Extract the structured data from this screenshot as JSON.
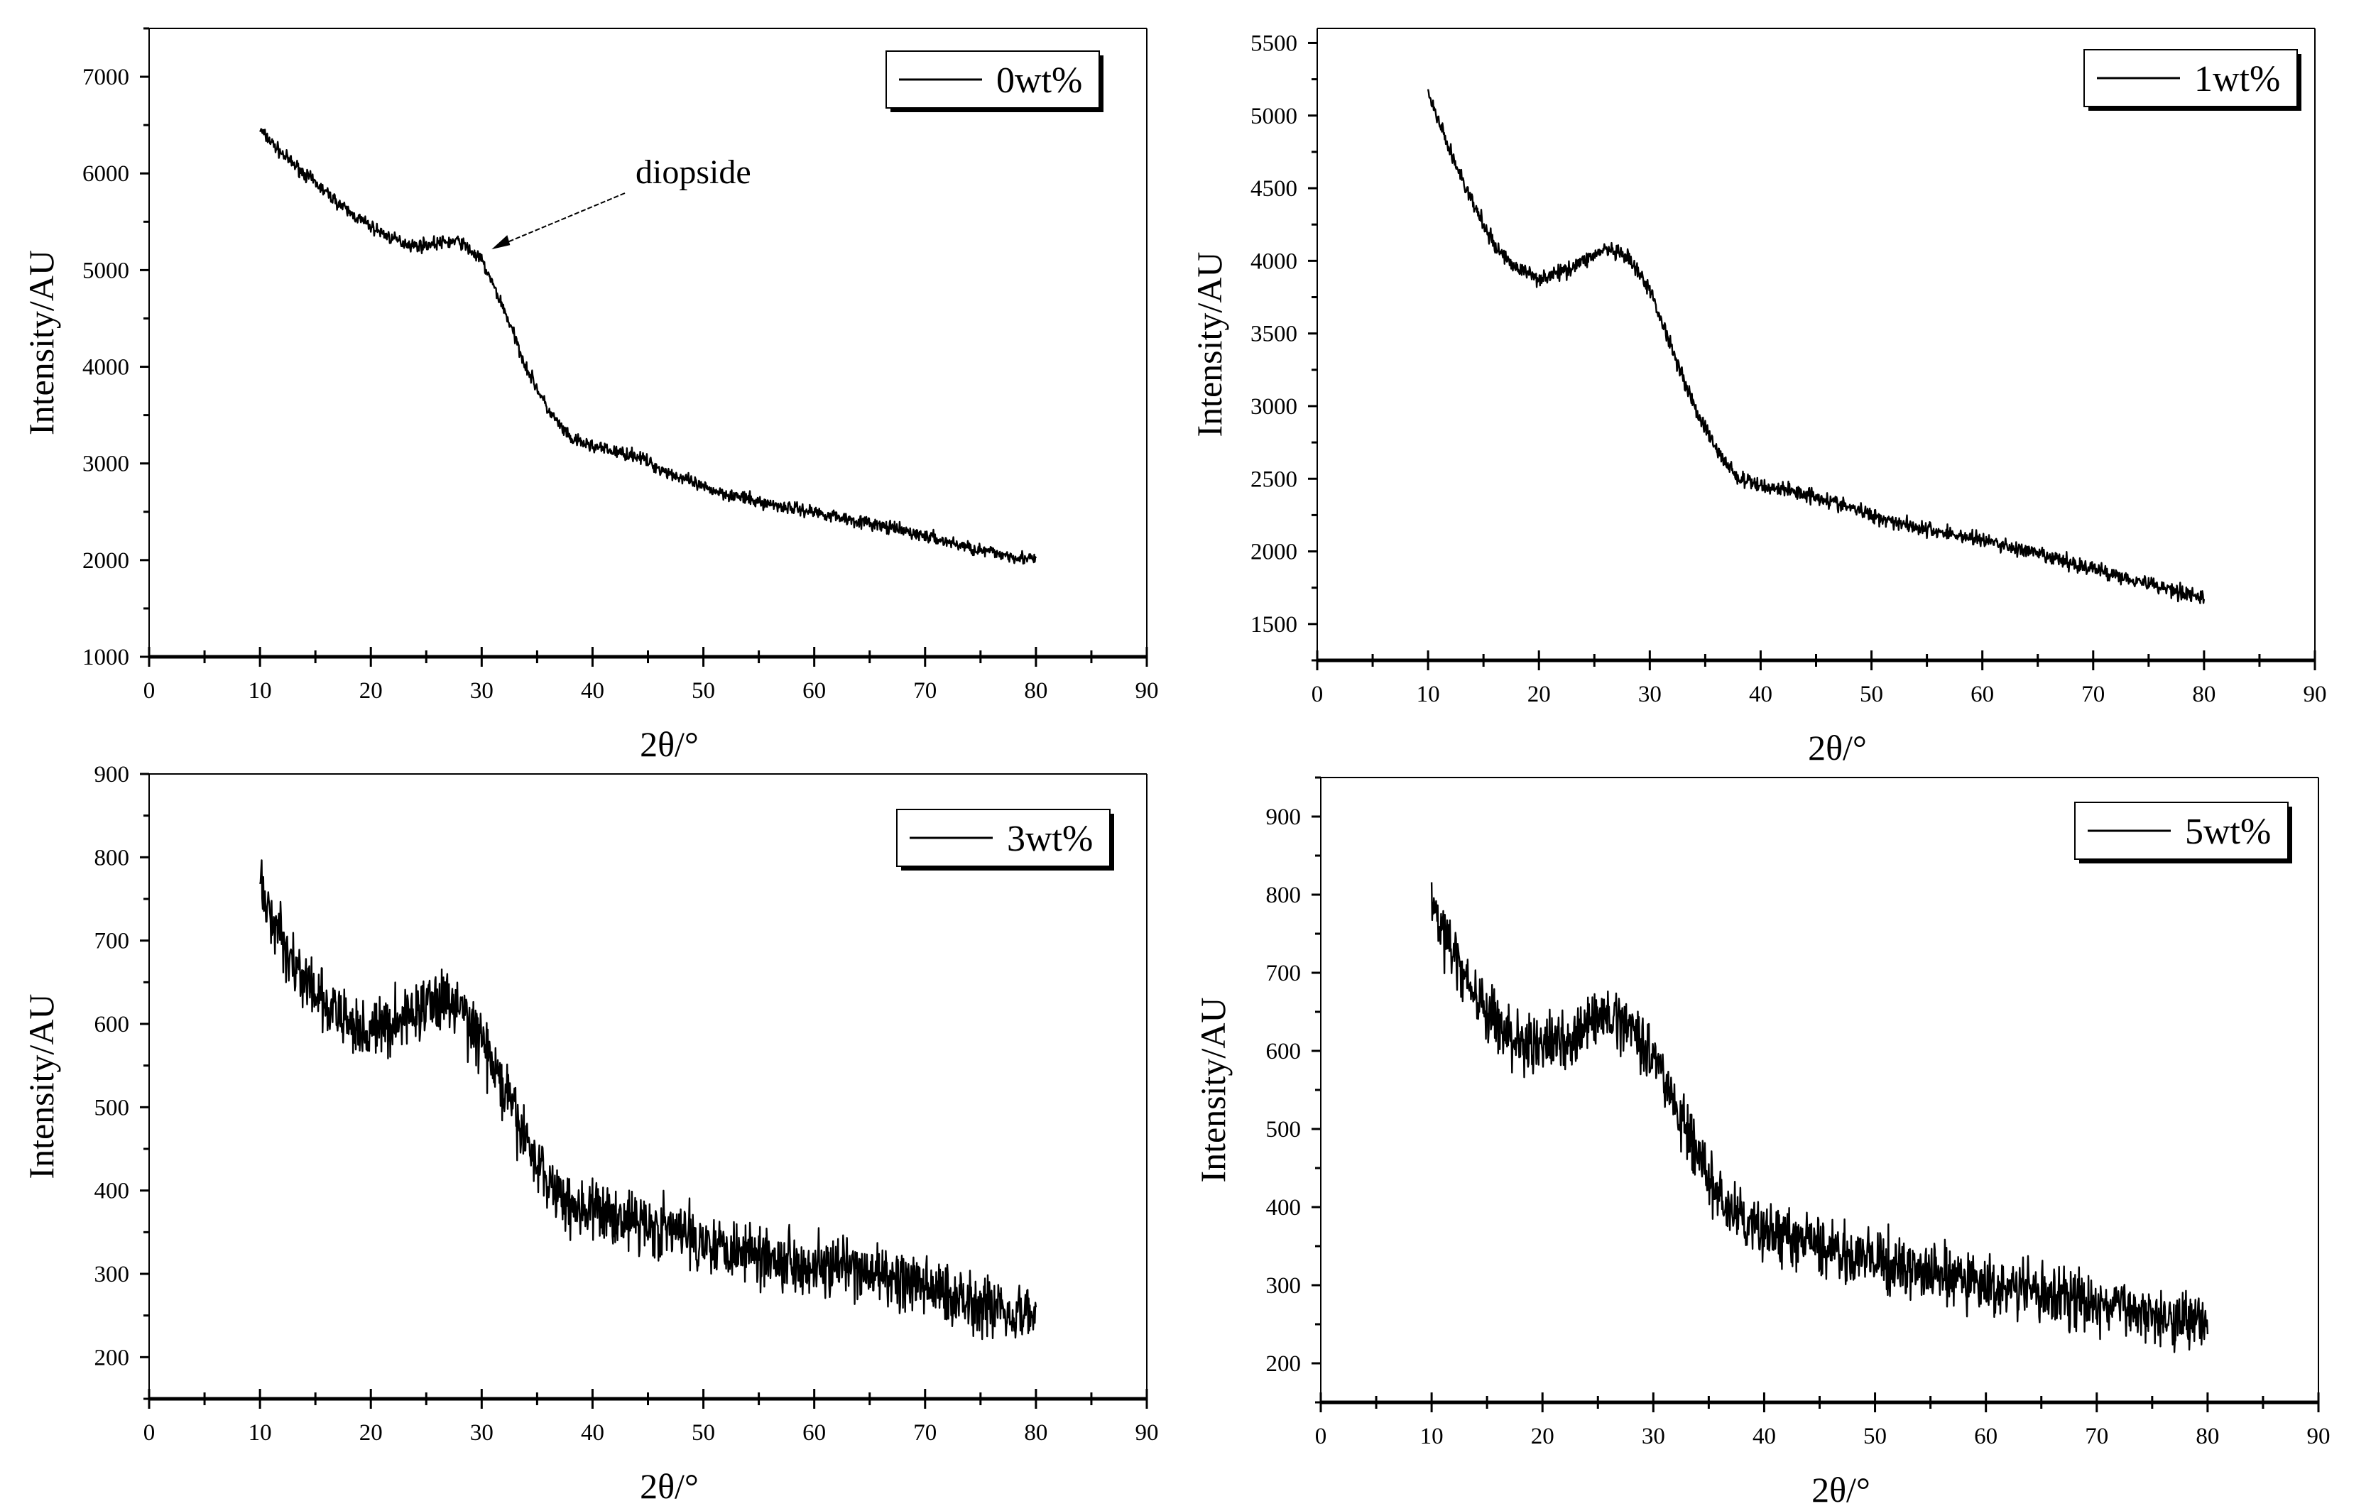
{
  "chart_data": [
    {
      "type": "line",
      "xlabel": "2θ/°",
      "ylabel": "Intensity/AU",
      "xlim": [
        0,
        90
      ],
      "ylim": [
        1000,
        7500
      ],
      "xticks": [
        0,
        10,
        20,
        30,
        40,
        50,
        60,
        70,
        80,
        90
      ],
      "xtick_labels": [
        "0",
        "10",
        "20",
        "30",
        "40",
        "50",
        "60",
        "70",
        "80",
        "90"
      ],
      "yticks": [
        1000,
        2000,
        3000,
        4000,
        5000,
        6000,
        7000
      ],
      "ytick_labels": [
        "1000",
        "2000",
        "3000",
        "4000",
        "5000",
        "6000",
        "7000"
      ],
      "legend": "0wt%",
      "legend_position": "top-right",
      "annotation": {
        "text": "diopside",
        "x": 30,
        "y": 5200
      },
      "noise": 100,
      "series": [
        {
          "name": "0wt%",
          "x": [
            10,
            12,
            14,
            16,
            18,
            20,
            22,
            24,
            26,
            28,
            30,
            32,
            34,
            36,
            38,
            40,
            42,
            44,
            46,
            50,
            55,
            60,
            65,
            70,
            75,
            80
          ],
          "y": [
            6450,
            6200,
            6000,
            5800,
            5600,
            5450,
            5320,
            5250,
            5280,
            5300,
            5100,
            4600,
            4000,
            3550,
            3250,
            3180,
            3120,
            3080,
            2950,
            2750,
            2600,
            2500,
            2380,
            2250,
            2100,
            2000
          ]
        }
      ]
    },
    {
      "type": "line",
      "xlabel": "2θ/°",
      "ylabel": "Intensity/AU",
      "xlim": [
        0,
        90
      ],
      "ylim": [
        1250,
        5600
      ],
      "xticks": [
        0,
        10,
        20,
        30,
        40,
        50,
        60,
        70,
        80,
        90
      ],
      "xtick_labels": [
        "0",
        "10",
        "20",
        "30",
        "40",
        "50",
        "60",
        "70",
        "80",
        "90"
      ],
      "yticks": [
        1500,
        2000,
        2500,
        3000,
        3500,
        4000,
        4500,
        5000,
        5500
      ],
      "ytick_labels": [
        "1500",
        "2000",
        "2500",
        "3000",
        "3500",
        "4000",
        "4500",
        "5000",
        "5500"
      ],
      "legend": "1wt%",
      "legend_position": "top-right",
      "noise": 80,
      "series": [
        {
          "name": "1wt%",
          "x": [
            10,
            12,
            14,
            16,
            18,
            20,
            22,
            24,
            26,
            28,
            30,
            32,
            34,
            36,
            38,
            40,
            42,
            45,
            50,
            55,
            60,
            65,
            70,
            75,
            80
          ],
          "y": [
            5150,
            4750,
            4400,
            4100,
            3950,
            3880,
            3920,
            4000,
            4080,
            4020,
            3800,
            3400,
            3000,
            2700,
            2500,
            2450,
            2430,
            2380,
            2250,
            2150,
            2080,
            1980,
            1880,
            1780,
            1680
          ]
        }
      ]
    },
    {
      "type": "line",
      "xlabel": "2θ/°",
      "ylabel": "Intensity/AU",
      "xlim": [
        0,
        90
      ],
      "ylim": [
        150,
        900
      ],
      "xticks": [
        0,
        10,
        20,
        30,
        40,
        50,
        60,
        70,
        80,
        90
      ],
      "xtick_labels": [
        "0",
        "10",
        "20",
        "30",
        "40",
        "50",
        "60",
        "70",
        "80",
        "90"
      ],
      "yticks": [
        200,
        300,
        400,
        500,
        600,
        700,
        800,
        900
      ],
      "ytick_labels": [
        "200",
        "300",
        "400",
        "500",
        "600",
        "700",
        "800",
        "900"
      ],
      "legend": "3wt%",
      "legend_position": "top-right",
      "noise": 55,
      "series": [
        {
          "name": "3wt%",
          "x": [
            10,
            12,
            14,
            16,
            18,
            20,
            22,
            24,
            26,
            28,
            30,
            32,
            34,
            36,
            38,
            40,
            42,
            45,
            50,
            55,
            60,
            65,
            70,
            75,
            80
          ],
          "y": [
            760,
            700,
            650,
            620,
            600,
            590,
            600,
            615,
            630,
            620,
            580,
            520,
            460,
            410,
            385,
            375,
            370,
            360,
            340,
            325,
            310,
            300,
            285,
            265,
            250
          ]
        }
      ]
    },
    {
      "type": "line",
      "xlabel": "2θ/°",
      "ylabel": "Intensity/AU",
      "xlim": [
        0,
        90
      ],
      "ylim": [
        150,
        950
      ],
      "xticks": [
        0,
        10,
        20,
        30,
        40,
        50,
        60,
        70,
        80,
        90
      ],
      "xtick_labels": [
        "0",
        "10",
        "20",
        "30",
        "40",
        "50",
        "60",
        "70",
        "80",
        "90"
      ],
      "yticks": [
        200,
        300,
        400,
        500,
        600,
        700,
        800,
        900
      ],
      "ytick_labels": [
        "200",
        "300",
        "400",
        "500",
        "600",
        "700",
        "800",
        "900"
      ],
      "legend": "5wt%",
      "legend_position": "top-right",
      "noise": 55,
      "series": [
        {
          "name": "5wt%",
          "x": [
            10,
            12,
            14,
            16,
            18,
            20,
            22,
            24,
            26,
            28,
            30,
            32,
            34,
            36,
            38,
            40,
            42,
            45,
            50,
            55,
            60,
            65,
            70,
            75,
            80
          ],
          "y": [
            790,
            720,
            670,
            630,
            610,
            605,
            615,
            630,
            645,
            635,
            595,
            530,
            465,
            410,
            380,
            370,
            360,
            350,
            330,
            315,
            300,
            290,
            275,
            265,
            255
          ]
        }
      ]
    }
  ]
}
